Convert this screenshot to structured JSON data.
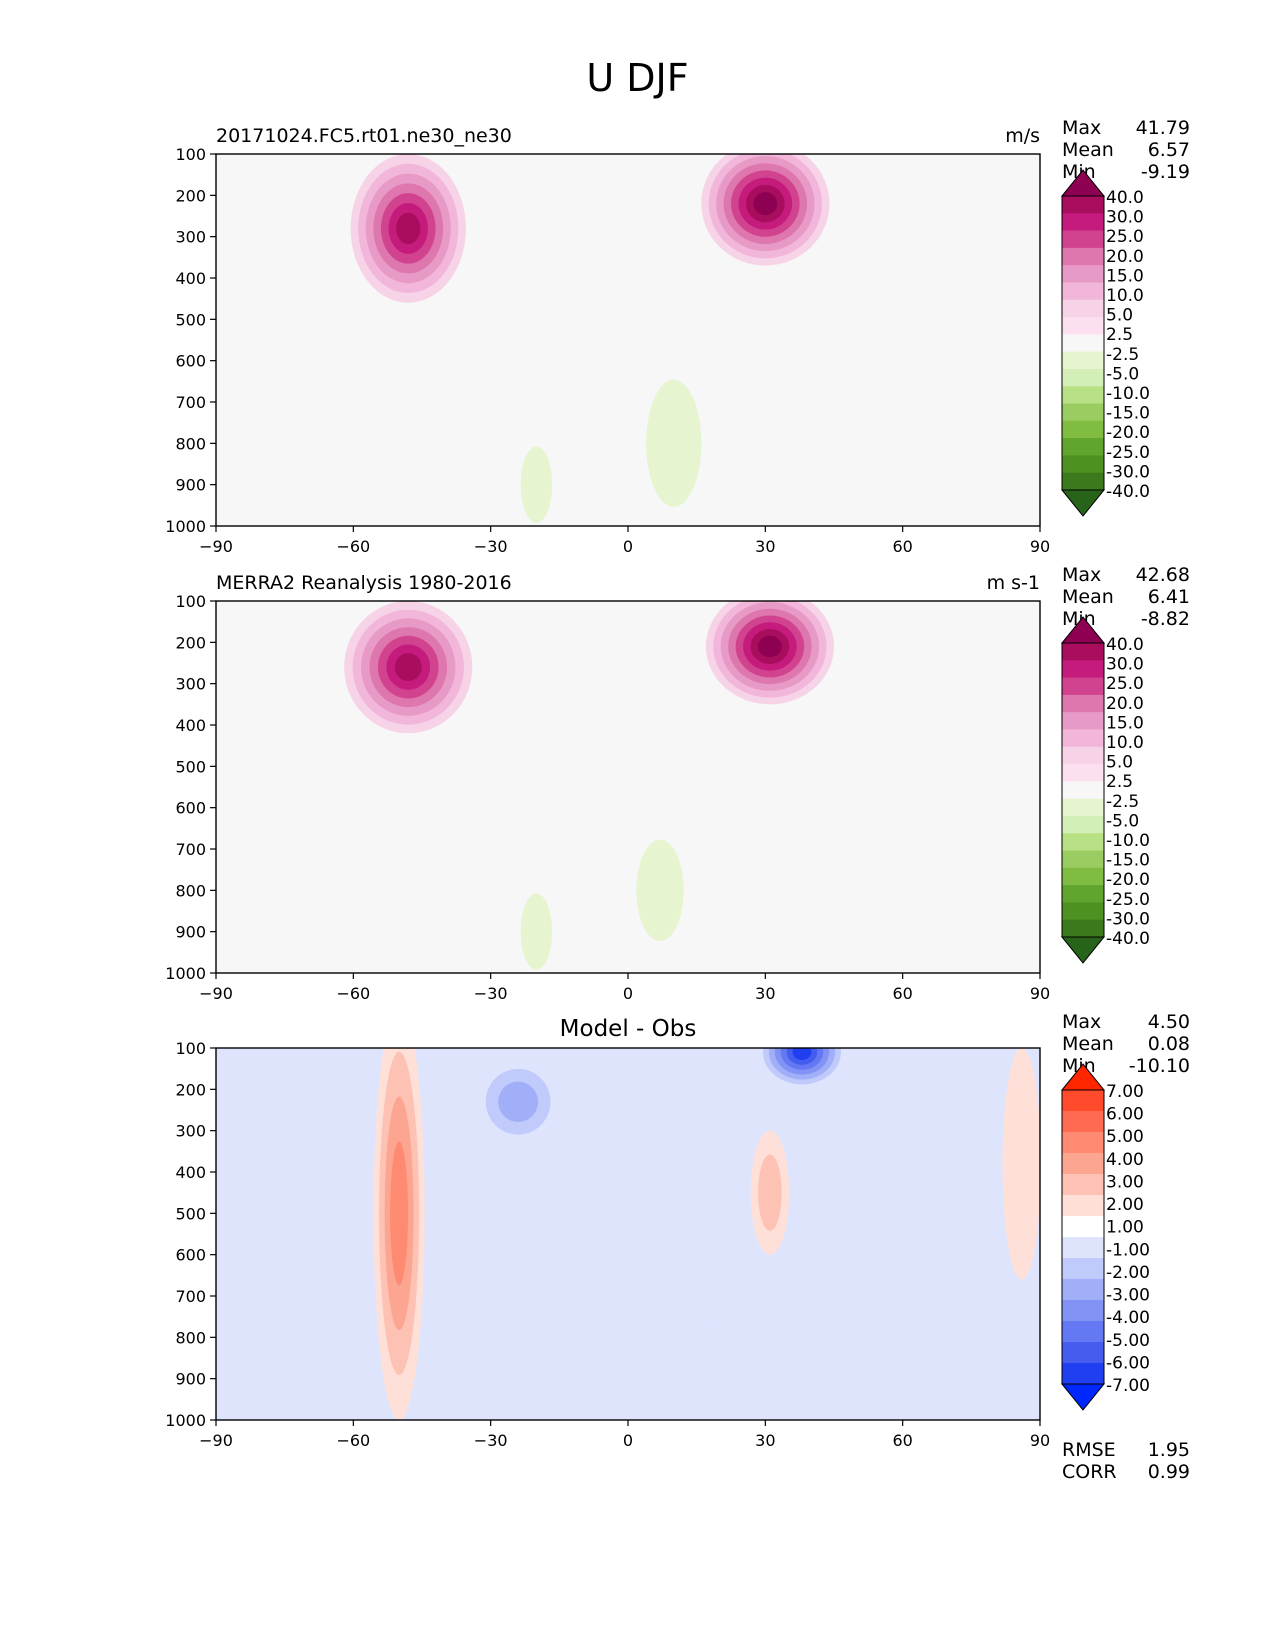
{
  "figure": {
    "title": "U DJF"
  },
  "chart_data": [
    {
      "type": "heatmap",
      "subtype": "filled-contour latitude-pressure cross-section",
      "title": "20171024.FC5.rt01.ne30_ne30",
      "units": "m/s",
      "xticks": [
        "−90",
        "−60",
        "−30",
        "0",
        "30",
        "60",
        "90"
      ],
      "yticks": [
        "100",
        "200",
        "300",
        "400",
        "500",
        "600",
        "700",
        "800",
        "900",
        "1000"
      ],
      "xlim": [
        -90,
        90
      ],
      "ylim": [
        1000,
        100
      ],
      "stats": {
        "max_label": "Max",
        "max": "41.79",
        "mean_label": "Mean",
        "mean": "6.57",
        "min_label": "Min",
        "min": "-9.19"
      },
      "colorbar": {
        "labels": [
          "40.0",
          "30.0",
          "25.0",
          "20.0",
          "15.0",
          "10.0",
          "5.0",
          "2.5",
          "-2.5",
          "-5.0",
          "-10.0",
          "-15.0",
          "-20.0",
          "-25.0",
          "-30.0",
          "-40.0"
        ],
        "colors": [
          "#8e0152",
          "#a90d5e",
          "#c51b7d",
          "#d1438f",
          "#de77ae",
          "#e89ac6",
          "#f1b6da",
          "#f7d3e8",
          "#fde0ef",
          "#f7f7f7",
          "#e6f5d0",
          "#d4eeb7",
          "#b8e186",
          "#9acd61",
          "#7fbc41",
          "#5fa52e",
          "#4d9221",
          "#3b7a1c",
          "#276419"
        ]
      },
      "features": [
        {
          "lat": -48,
          "p": 280,
          "value": 35,
          "rx": 9,
          "ry": 180
        },
        {
          "lat": 30,
          "p": 220,
          "value": 42,
          "rx": 10,
          "ry": 150
        },
        {
          "lat": 10,
          "p": 800,
          "value": -8,
          "rx": 7,
          "ry": 250
        },
        {
          "lat": -20,
          "p": 900,
          "value": -6,
          "rx": 4,
          "ry": 150
        }
      ]
    },
    {
      "type": "heatmap",
      "subtype": "filled-contour latitude-pressure cross-section",
      "title": "MERRA2 Reanalysis 1980-2016",
      "units": "m s-1",
      "xticks": [
        "−90",
        "−60",
        "−30",
        "0",
        "30",
        "60",
        "90"
      ],
      "yticks": [
        "100",
        "200",
        "300",
        "400",
        "500",
        "600",
        "700",
        "800",
        "900",
        "1000"
      ],
      "xlim": [
        -90,
        90
      ],
      "ylim": [
        1000,
        100
      ],
      "stats": {
        "max_label": "Max",
        "max": "42.68",
        "mean_label": "Mean",
        "mean": "6.41",
        "min_label": "Min",
        "min": "-8.82"
      },
      "colorbar": {
        "labels": [
          "40.0",
          "30.0",
          "25.0",
          "20.0",
          "15.0",
          "10.0",
          "5.0",
          "2.5",
          "-2.5",
          "-5.0",
          "-10.0",
          "-15.0",
          "-20.0",
          "-25.0",
          "-30.0",
          "-40.0"
        ],
        "colors": [
          "#8e0152",
          "#a90d5e",
          "#c51b7d",
          "#d1438f",
          "#de77ae",
          "#e89ac6",
          "#f1b6da",
          "#f7d3e8",
          "#fde0ef",
          "#f7f7f7",
          "#e6f5d0",
          "#d4eeb7",
          "#b8e186",
          "#9acd61",
          "#7fbc41",
          "#5fa52e",
          "#4d9221",
          "#3b7a1c",
          "#276419"
        ]
      },
      "features": [
        {
          "lat": -48,
          "p": 260,
          "value": 32,
          "rx": 10,
          "ry": 160
        },
        {
          "lat": 31,
          "p": 210,
          "value": 43,
          "rx": 10,
          "ry": 140
        },
        {
          "lat": 7,
          "p": 800,
          "value": -8,
          "rx": 6,
          "ry": 200
        },
        {
          "lat": -20,
          "p": 900,
          "value": -5,
          "rx": 4,
          "ry": 150
        }
      ]
    },
    {
      "type": "heatmap",
      "subtype": "filled-contour latitude-pressure cross-section",
      "title": "Model - Obs",
      "units": "",
      "xticks": [
        "−90",
        "−60",
        "−30",
        "0",
        "30",
        "60",
        "90"
      ],
      "yticks": [
        "100",
        "200",
        "300",
        "400",
        "500",
        "600",
        "700",
        "800",
        "900",
        "1000"
      ],
      "xlim": [
        -90,
        90
      ],
      "ylim": [
        1000,
        100
      ],
      "stats": {
        "max_label": "Max",
        "max": "4.50",
        "mean_label": "Mean",
        "mean": "0.08",
        "min_label": "Min",
        "min": "-10.10"
      },
      "metrics": {
        "rmse_label": "RMSE",
        "rmse": "1.95",
        "corr_label": "CORR",
        "corr": "0.99"
      },
      "colorbar": {
        "labels": [
          "7.00",
          "6.00",
          "5.00",
          "4.00",
          "3.00",
          "2.00",
          "1.00",
          "-1.00",
          "-2.00",
          "-3.00",
          "-4.00",
          "-5.00",
          "-6.00",
          "-7.00"
        ],
        "colors": [
          "#ff2600",
          "#ff4a2c",
          "#ff6b52",
          "#ff8a72",
          "#fca590",
          "#fdc2b3",
          "#fee0d8",
          "#ffffff",
          "#dfe4fd",
          "#c0cafb",
          "#a1aff8",
          "#8293f5",
          "#6378f2",
          "#445dee",
          "#1f3ff0",
          "#0027ff"
        ]
      },
      "features": [
        {
          "lat": -50,
          "p": 500,
          "value": 4,
          "rx": 4,
          "ry": 500
        },
        {
          "lat": 38,
          "p": 110,
          "value": -10,
          "rx": 7,
          "ry": 90
        },
        {
          "lat": -24,
          "p": 230,
          "value": -3,
          "rx": 7,
          "ry": 110
        },
        {
          "lat": 31,
          "p": 450,
          "value": 2.5,
          "rx": 3,
          "ry": 150
        },
        {
          "lat": 12,
          "p": 760,
          "value": -1.5,
          "rx": 5,
          "ry": 230
        },
        {
          "lat": 86,
          "p": 380,
          "value": 1.5,
          "rx": 3,
          "ry": 280
        }
      ]
    }
  ]
}
